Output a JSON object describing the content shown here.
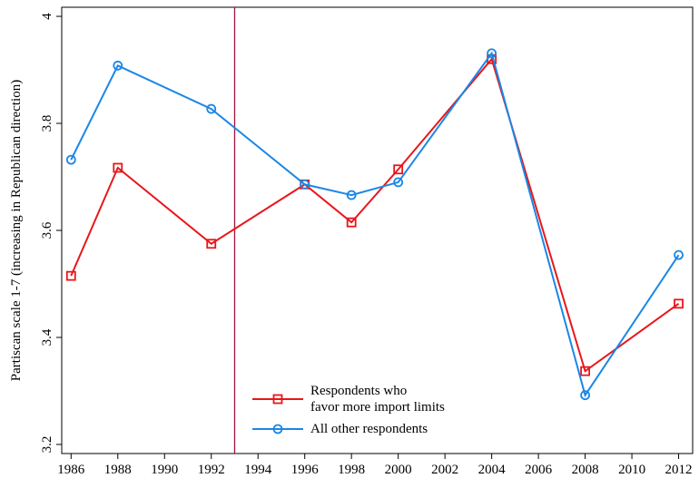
{
  "chart_data": {
    "type": "line",
    "y_label": "Partiscan scale 1-7 (increasing in Republican direction)",
    "x": [
      1986,
      1988,
      1992,
      1996,
      1998,
      2000,
      2004,
      2008,
      2012
    ],
    "series": [
      {
        "name": "Respondents who\nfavor more import limits",
        "color": "#e8161b",
        "marker": "square",
        "values": [
          3.515,
          3.717,
          3.575,
          3.686,
          3.615,
          3.714,
          3.92,
          3.337,
          3.463
        ]
      },
      {
        "name": "All other respondents",
        "color": "#1a87e6",
        "marker": "circle",
        "values": [
          3.732,
          3.908,
          3.827,
          3.686,
          3.666,
          3.69,
          3.931,
          3.292,
          3.554
        ]
      }
    ],
    "vline": {
      "x": 1993,
      "color": "#a0143c"
    },
    "xlim": [
      1985.6,
      2012.6
    ],
    "ylim": [
      3.183,
      4.017
    ],
    "xticks": [
      1986,
      1988,
      1990,
      1992,
      1994,
      1996,
      1998,
      2000,
      2002,
      2004,
      2006,
      2008,
      2010,
      2012
    ],
    "yticks": [
      3.2,
      3.4,
      3.6,
      3.8,
      4
    ]
  }
}
